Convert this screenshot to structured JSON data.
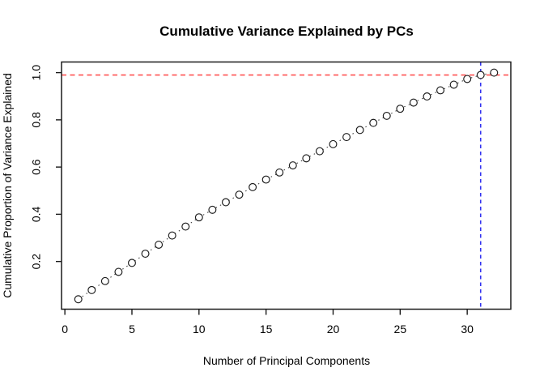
{
  "figure": {
    "background_color": "#ffffff",
    "text_color": "#000000"
  },
  "chart_data": {
    "type": "scatter",
    "title": "Cumulative Variance Explained by PCs",
    "xlabel": "Number of Principal Components",
    "ylabel": "Cumulative Proportion of Variance Explained",
    "x": [
      1,
      2,
      3,
      4,
      5,
      6,
      7,
      8,
      9,
      10,
      11,
      12,
      13,
      14,
      15,
      16,
      17,
      18,
      19,
      20,
      21,
      22,
      23,
      24,
      25,
      26,
      27,
      28,
      29,
      30,
      31,
      32
    ],
    "y": [
      0.04,
      0.079,
      0.117,
      0.156,
      0.194,
      0.233,
      0.271,
      0.31,
      0.348,
      0.387,
      0.419,
      0.451,
      0.483,
      0.515,
      0.547,
      0.577,
      0.607,
      0.637,
      0.667,
      0.697,
      0.727,
      0.757,
      0.787,
      0.817,
      0.847,
      0.873,
      0.899,
      0.925,
      0.949,
      0.973,
      0.99,
      1.0
    ],
    "marker": "open-circle",
    "marker_color": "#1a1a1a",
    "connector": "dotted",
    "connector_color": "#404040",
    "xticks": [
      0,
      5,
      10,
      15,
      20,
      25,
      30
    ],
    "yticks": [
      0.2,
      0.4,
      0.6,
      0.8,
      1.0
    ],
    "xlim": [
      -0.25,
      33.25
    ],
    "ylim": [
      -0.002,
      1.045
    ],
    "grid": false,
    "legend": null,
    "reference_lines": {
      "horizontal": {
        "y": 0.99,
        "color": "#ff5252",
        "style": "dashed"
      },
      "vertical": {
        "x": 31,
        "color": "#3232f0",
        "style": "dashed"
      }
    },
    "box_color": "#1a1a1a"
  }
}
